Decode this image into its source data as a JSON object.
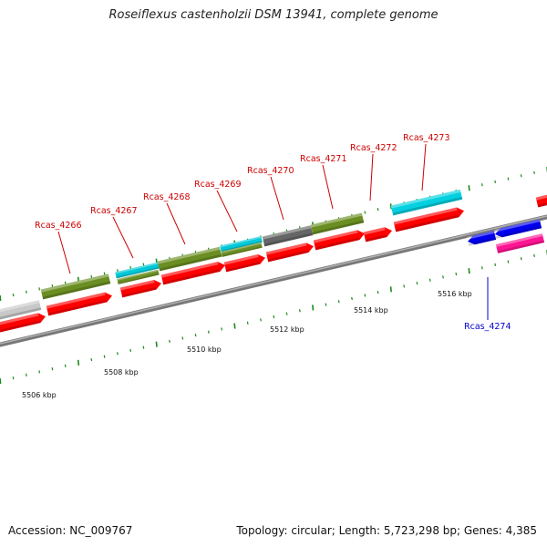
{
  "title": "Roseiflexus castenholzii DSM 13941, complete genome",
  "footer": {
    "accession": "Accession: NC_009767",
    "summary": "Topology: circular; Length: 5,723,298 bp; Genes: 4,385"
  },
  "colors": {
    "backbone": "#8a8a8a",
    "tick": "#1a8a1a",
    "red_label": "#cc0000",
    "blue_label": "#0000cc"
  },
  "scale_labels": [
    {
      "kbp": 5506,
      "text": "5506 kbp"
    },
    {
      "kbp": 5508,
      "text": "5508 kbp"
    },
    {
      "kbp": 5510,
      "text": "5510 kbp"
    },
    {
      "kbp": 5512,
      "text": "5512 kbp"
    },
    {
      "kbp": 5514,
      "text": "5514 kbp"
    },
    {
      "kbp": 5516,
      "text": "5516 kbp"
    }
  ],
  "gene_labels": [
    {
      "text": "Rcas_4266",
      "color": "red"
    },
    {
      "text": "Rcas_4267",
      "color": "red"
    },
    {
      "text": "Rcas_4268",
      "color": "red"
    },
    {
      "text": "Rcas_4269",
      "color": "red"
    },
    {
      "text": "Rcas_4270",
      "color": "red"
    },
    {
      "text": "Rcas_4271",
      "color": "red"
    },
    {
      "text": "Rcas_4272",
      "color": "red"
    },
    {
      "text": "Rcas_4273",
      "color": "red"
    },
    {
      "text": "Rcas_4274",
      "color": "blue"
    }
  ],
  "features": [
    {
      "name": "grey-block",
      "color": "#c0c0c0",
      "track": "upper"
    },
    {
      "name": "olive-4266",
      "color": "#6b8e23",
      "track": "upper"
    },
    {
      "name": "cyan-4267",
      "color": "#00c8d8",
      "track": "upper"
    },
    {
      "name": "olive-4267",
      "color": "#6b8e23",
      "track": "upper"
    },
    {
      "name": "olive-4268",
      "color": "#6b8e23",
      "track": "upper"
    },
    {
      "name": "cyan-4269",
      "color": "#00c8d8",
      "track": "upper"
    },
    {
      "name": "olive-4269",
      "color": "#6b8e23",
      "track": "upper"
    },
    {
      "name": "dark-4270",
      "color": "#666666",
      "track": "upper"
    },
    {
      "name": "olive-4271",
      "color": "#6b8e23",
      "track": "upper"
    },
    {
      "name": "cyan-4273",
      "color": "#00c8d8",
      "track": "upper"
    },
    {
      "name": "red-gene",
      "color": "#ff0000",
      "track": "forward"
    },
    {
      "name": "blue-4274",
      "color": "#0000ee",
      "track": "reverse"
    },
    {
      "name": "magenta-4274",
      "color": "#ff1493",
      "track": "reverse2"
    }
  ]
}
